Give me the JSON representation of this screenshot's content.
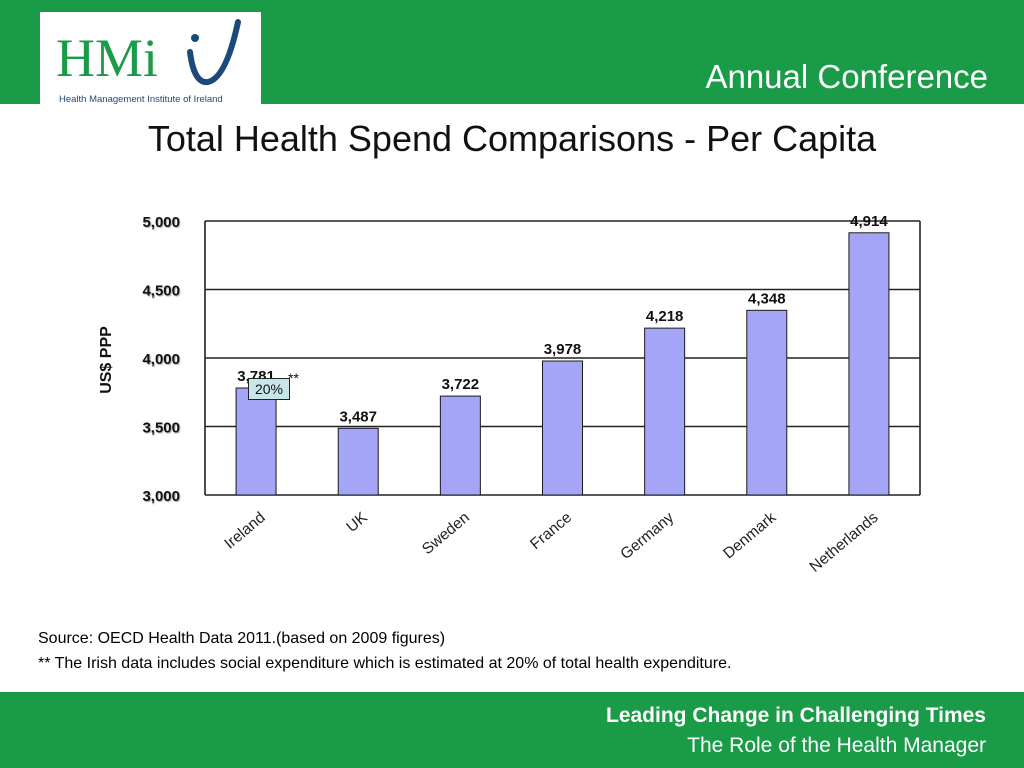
{
  "header": {
    "logo": {
      "brand_text": "HMi",
      "tagline": "Health Management Institute of Ireland",
      "colors": {
        "green": "#1a9b48",
        "blue": "#1b4a7a"
      }
    },
    "conference_title": "Annual Conference"
  },
  "slide": {
    "title": "Total Health Spend Comparisons - Per Capita"
  },
  "chart_data": {
    "type": "bar",
    "title": "",
    "xlabel": "",
    "ylabel": "US$ PPP",
    "categories": [
      "Ireland",
      "UK",
      "Sweden",
      "France",
      "Germany",
      "Denmark",
      "Netherlands"
    ],
    "values": [
      3781,
      3487,
      3722,
      3978,
      4218,
      4348,
      4914
    ],
    "data_labels": [
      "3,781",
      "3,487",
      "3,722",
      "3,978",
      "4,218",
      "4,348",
      "4,914"
    ],
    "ylim": [
      3000,
      5000
    ],
    "yticks": [
      3000,
      3500,
      4000,
      4500,
      5000
    ],
    "ytick_labels": [
      "3,000",
      "3,500",
      "4,000",
      "4,500",
      "5,000"
    ],
    "grid": true,
    "bar_color": "#a5a5f7",
    "annotation": {
      "box_text": "20%",
      "marker": "**",
      "category": "Ireland"
    }
  },
  "notes": {
    "source": "Source: OECD Health Data 2011.(based on 2009 figures)",
    "footnote": "** The Irish data includes social expenditure which is estimated at 20% of total health expenditure."
  },
  "footer": {
    "line1": "Leading Change in Challenging Times",
    "line2": "The Role of the Health Manager"
  },
  "theme": {
    "band_color": "#1a9b48"
  }
}
